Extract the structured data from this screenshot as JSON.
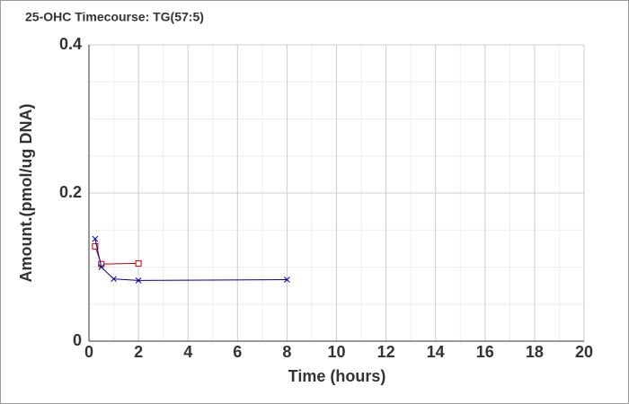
{
  "chart_data": {
    "type": "line",
    "title": "25-OHC Timecourse: TG(57:5)",
    "x_label": "Time (hours)",
    "y_label": "Amount.(pmol/ug DNA)",
    "xlim": [
      0,
      20
    ],
    "xticks": [
      0,
      2,
      4,
      6,
      8,
      10,
      12,
      14,
      16,
      18,
      20
    ],
    "minor_xticks": [
      1,
      3,
      5,
      7,
      9,
      11,
      13,
      15,
      17,
      19
    ],
    "ylim": [
      0,
      0.4
    ],
    "yticks": [
      0,
      0.2,
      0.4
    ],
    "minor_yticks": [
      0.05,
      0.1,
      0.15,
      0.25,
      0.3,
      0.35
    ],
    "grid": true,
    "series": [
      {
        "color": "#cc0000",
        "marker": "square",
        "x": [
          0.25,
          0.5,
          2
        ],
        "values": [
          0.128,
          0.104,
          0.105
        ]
      },
      {
        "color": "#000099",
        "marker": "cross",
        "x": [
          0.25,
          0.5,
          1,
          2,
          8
        ],
        "values": [
          0.138,
          0.1,
          0.084,
          0.082,
          0.083
        ]
      }
    ]
  }
}
